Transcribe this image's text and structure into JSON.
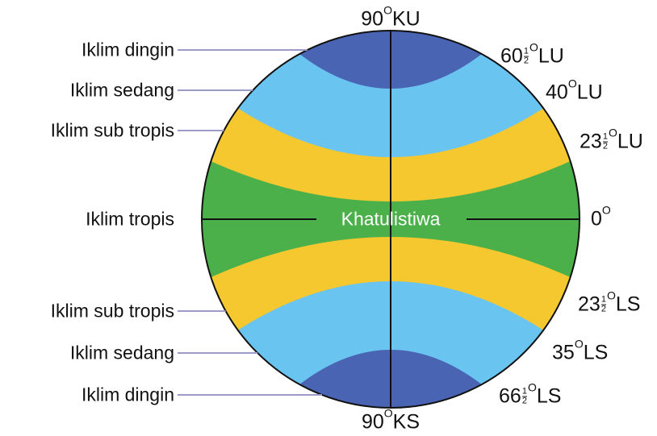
{
  "zones": [
    "Iklim dingin",
    "Iklim sedang",
    "Iklim sub tropis",
    "Iklim tropis",
    "Iklim sub tropis",
    "Iklim sedang",
    "Iklim dingin"
  ],
  "top": {
    "number": "90",
    "degree": "O",
    "suffix": "KU"
  },
  "bottom": {
    "number": "90",
    "degree": "O",
    "suffix": "KS"
  },
  "equator": "Khatulistiwa",
  "latitudes": [
    {
      "number": "60",
      "fraction": {
        "num": "1",
        "den": "2"
      },
      "degree": "O",
      "suffix": "LU"
    },
    {
      "number": "40",
      "degree": "O",
      "suffix": "LU"
    },
    {
      "number": "23",
      "fraction": {
        "num": "1",
        "den": "2"
      },
      "degree": "O",
      "suffix": "LU"
    },
    {
      "number": "0",
      "degree": "O"
    },
    {
      "number": "23",
      "fraction": {
        "num": "1",
        "den": "2"
      },
      "degree": "O",
      "suffix": "LS"
    },
    {
      "number": "35",
      "degree": "O",
      "suffix": "LS"
    },
    {
      "number": "66",
      "fraction": {
        "num": "1",
        "den": "2"
      },
      "degree": "O",
      "suffix": "LS"
    }
  ]
}
